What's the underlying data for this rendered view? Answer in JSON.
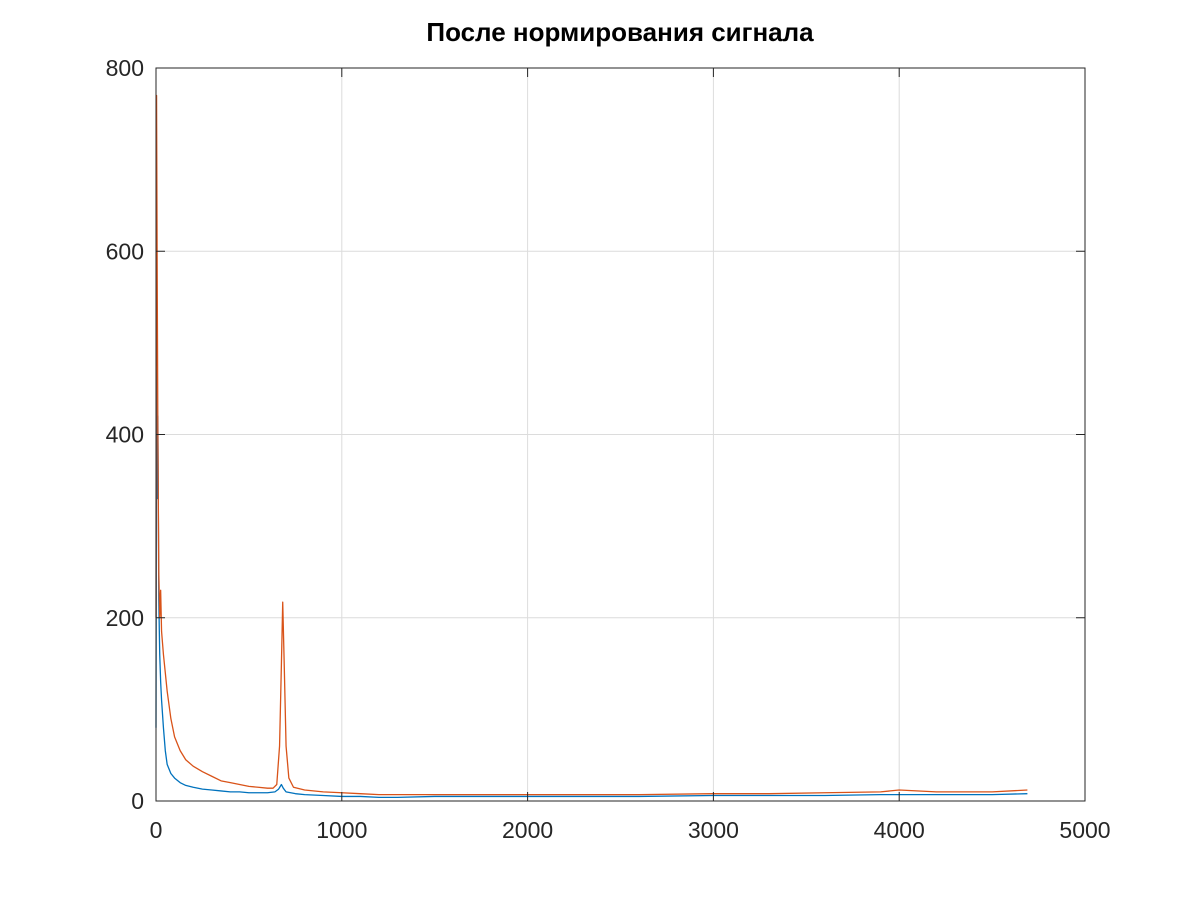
{
  "chart_data": {
    "type": "line",
    "title": "После нормирования сигнала",
    "xlabel": "",
    "ylabel": "",
    "xlim": [
      0,
      5000
    ],
    "ylim": [
      0,
      800
    ],
    "x_ticks": [
      0,
      1000,
      2000,
      3000,
      4000,
      5000
    ],
    "y_ticks": [
      0,
      200,
      400,
      600,
      800
    ],
    "grid": true,
    "series": [
      {
        "color": "#0072bd",
        "points": [
          [
            0,
            80
          ],
          [
            3,
            470
          ],
          [
            6,
            330
          ],
          [
            10,
            420
          ],
          [
            15,
            220
          ],
          [
            20,
            160
          ],
          [
            25,
            130
          ],
          [
            30,
            110
          ],
          [
            40,
            80
          ],
          [
            50,
            55
          ],
          [
            60,
            40
          ],
          [
            80,
            30
          ],
          [
            100,
            25
          ],
          [
            130,
            20
          ],
          [
            160,
            17
          ],
          [
            200,
            15
          ],
          [
            250,
            13
          ],
          [
            300,
            12
          ],
          [
            350,
            11
          ],
          [
            400,
            10
          ],
          [
            450,
            10
          ],
          [
            500,
            9
          ],
          [
            550,
            9
          ],
          [
            600,
            9
          ],
          [
            640,
            10
          ],
          [
            660,
            13
          ],
          [
            675,
            18
          ],
          [
            685,
            14
          ],
          [
            700,
            10
          ],
          [
            750,
            8
          ],
          [
            800,
            7
          ],
          [
            900,
            6
          ],
          [
            1000,
            5
          ],
          [
            1100,
            5
          ],
          [
            1200,
            4
          ],
          [
            1300,
            4
          ],
          [
            1500,
            5
          ],
          [
            1700,
            5
          ],
          [
            2000,
            5
          ],
          [
            2300,
            5
          ],
          [
            2600,
            5
          ],
          [
            3000,
            6
          ],
          [
            3300,
            6
          ],
          [
            3600,
            6
          ],
          [
            3900,
            7
          ],
          [
            4200,
            7
          ],
          [
            4500,
            7
          ],
          [
            4690,
            8
          ]
        ]
      },
      {
        "color": "#d95319",
        "points": [
          [
            0,
            200
          ],
          [
            3,
            770
          ],
          [
            6,
            600
          ],
          [
            10,
            400
          ],
          [
            15,
            250
          ],
          [
            20,
            200
          ],
          [
            25,
            230
          ],
          [
            30,
            185
          ],
          [
            40,
            160
          ],
          [
            50,
            140
          ],
          [
            60,
            120
          ],
          [
            80,
            90
          ],
          [
            100,
            70
          ],
          [
            130,
            55
          ],
          [
            160,
            45
          ],
          [
            200,
            38
          ],
          [
            250,
            32
          ],
          [
            300,
            27
          ],
          [
            350,
            22
          ],
          [
            400,
            20
          ],
          [
            450,
            18
          ],
          [
            500,
            16
          ],
          [
            550,
            15
          ],
          [
            600,
            14
          ],
          [
            630,
            14
          ],
          [
            650,
            18
          ],
          [
            665,
            60
          ],
          [
            675,
            150
          ],
          [
            682,
            217
          ],
          [
            690,
            150
          ],
          [
            700,
            60
          ],
          [
            715,
            25
          ],
          [
            740,
            15
          ],
          [
            800,
            12
          ],
          [
            900,
            10
          ],
          [
            1000,
            9
          ],
          [
            1100,
            8
          ],
          [
            1200,
            7
          ],
          [
            1300,
            7
          ],
          [
            1500,
            7
          ],
          [
            1700,
            7
          ],
          [
            2000,
            7
          ],
          [
            2300,
            7
          ],
          [
            2600,
            7
          ],
          [
            3000,
            8
          ],
          [
            3300,
            8
          ],
          [
            3600,
            9
          ],
          [
            3900,
            10
          ],
          [
            4000,
            12
          ],
          [
            4200,
            10
          ],
          [
            4500,
            10
          ],
          [
            4690,
            12
          ]
        ]
      }
    ]
  }
}
